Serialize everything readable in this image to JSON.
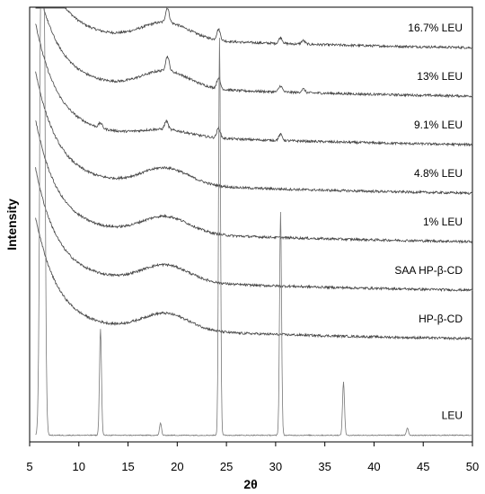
{
  "chart_data": {
    "type": "line",
    "xlabel": "2θ",
    "ylabel": "Intensity",
    "xlim": [
      5,
      50
    ],
    "xticks": [
      5,
      10,
      15,
      20,
      25,
      30,
      35,
      40,
      45,
      50
    ],
    "y_ticks_shown": false,
    "grid": false,
    "legend": "none",
    "series": [
      {
        "name": "16.7% LEU",
        "offset": 8,
        "amorphous": 1,
        "peaks": [
          [
            19.0,
            1.2
          ],
          [
            24.2,
            0.9
          ],
          [
            30.5,
            0.5
          ],
          [
            32.8,
            0.3
          ]
        ]
      },
      {
        "name": "13% LEU",
        "offset": 7,
        "amorphous": 1,
        "peaks": [
          [
            19.0,
            1.2
          ],
          [
            24.2,
            0.9
          ],
          [
            30.5,
            0.5
          ],
          [
            32.8,
            0.3
          ]
        ]
      },
      {
        "name": "9.1% LEU",
        "offset": 6,
        "amorphous": 0.4,
        "peaks": [
          [
            12.2,
            0.4
          ],
          [
            18.9,
            0.7
          ],
          [
            24.2,
            0.8
          ],
          [
            30.5,
            0.5
          ]
        ]
      },
      {
        "name": "4.8% LEU",
        "offset": 5,
        "amorphous": 1,
        "peaks": []
      },
      {
        "name": "1% LEU",
        "offset": 4,
        "amorphous": 1,
        "peaks": []
      },
      {
        "name": "SAA HP-β-CD",
        "offset": 3,
        "amorphous": 1,
        "peaks": []
      },
      {
        "name": "HP-β-CD",
        "offset": 2,
        "amorphous": 1,
        "peaks": []
      },
      {
        "name": "LEU",
        "offset": 0,
        "amorphous": 0,
        "peaks": [
          [
            6.3,
            20
          ],
          [
            12.2,
            2.2
          ],
          [
            18.3,
            0.25
          ],
          [
            24.3,
            8.2
          ],
          [
            30.5,
            4.6
          ],
          [
            36.9,
            1.1
          ],
          [
            43.4,
            0.15
          ]
        ]
      }
    ]
  }
}
